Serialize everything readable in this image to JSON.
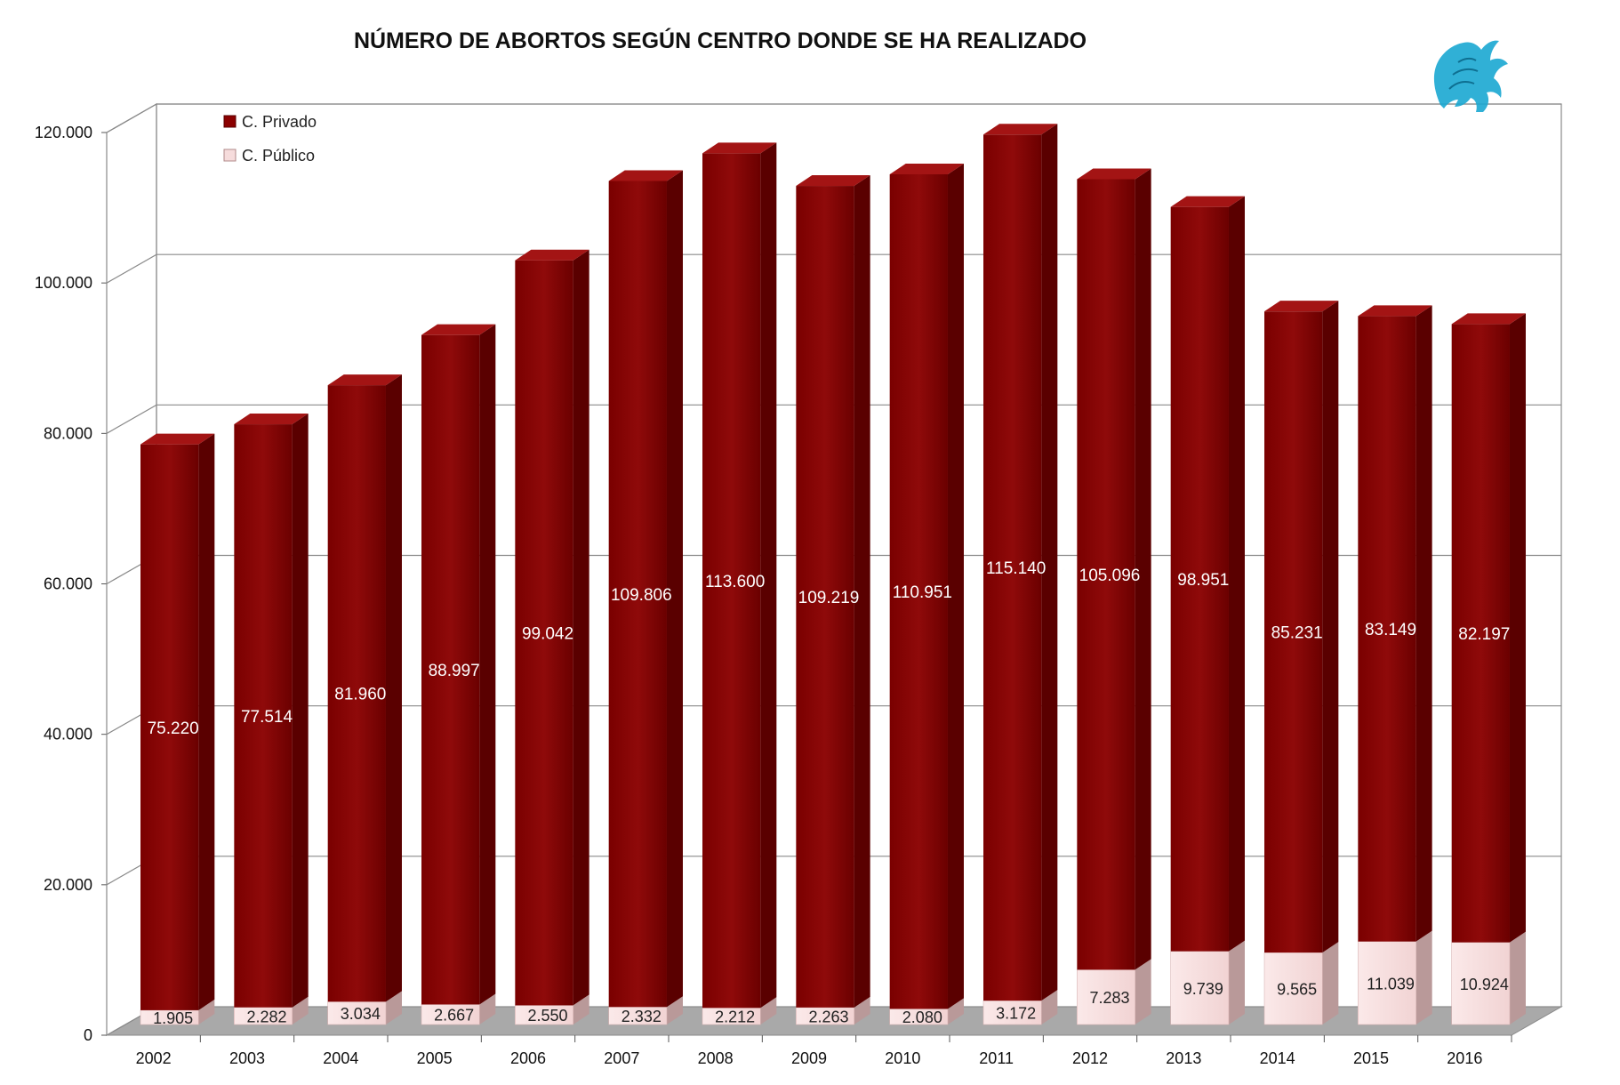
{
  "chart_data": {
    "type": "bar",
    "stacked": true,
    "title": "NÚMERO DE ABORTOS SEGÚN CENTRO DONDE SE HA REALIZADO",
    "xlabel": "",
    "ylabel": "",
    "ylim": [
      0,
      120000
    ],
    "yticks": [
      "0",
      "20.000",
      "40.000",
      "60.000",
      "80.000",
      "100.000",
      "120.000"
    ],
    "categories": [
      "2002",
      "2003",
      "2004",
      "2005",
      "2006",
      "2007",
      "2008",
      "2009",
      "2010",
      "2011",
      "2012",
      "2013",
      "2014",
      "2015",
      "2016"
    ],
    "series": [
      {
        "name": "C. Público",
        "color": "#f6dcdc",
        "values": [
          1905,
          2282,
          3034,
          2667,
          2550,
          2332,
          2212,
          2263,
          2080,
          3172,
          7283,
          9739,
          9565,
          11039,
          10924
        ],
        "labels": [
          "1.905",
          "2.282",
          "3.034",
          "2.667",
          "2.550",
          "2.332",
          "2.212",
          "2.263",
          "2.080",
          "3.172",
          "7.283",
          "9.739",
          "9.565",
          "11.039",
          "10.924"
        ]
      },
      {
        "name": "C. Privado",
        "color": "#8b0000",
        "values": [
          75220,
          77514,
          81960,
          88997,
          99042,
          109806,
          113600,
          109219,
          110951,
          115140,
          105096,
          98951,
          85231,
          83149,
          82197
        ],
        "labels": [
          "75.220",
          "77.514",
          "81.960",
          "88.997",
          "99.042",
          "109.806",
          "113.600",
          "109.219",
          "110.951",
          "115.140",
          "105.096",
          "98.951",
          "85.231",
          "83.149",
          "82.197"
        ]
      }
    ],
    "legend": {
      "position": "top-left",
      "order": [
        "C. Privado",
        "C. Público"
      ]
    },
    "grid": true,
    "style": "3d-stacked-column"
  },
  "logo": {
    "icon": "griffin-logo-icon",
    "color": "#1aa7d1"
  }
}
